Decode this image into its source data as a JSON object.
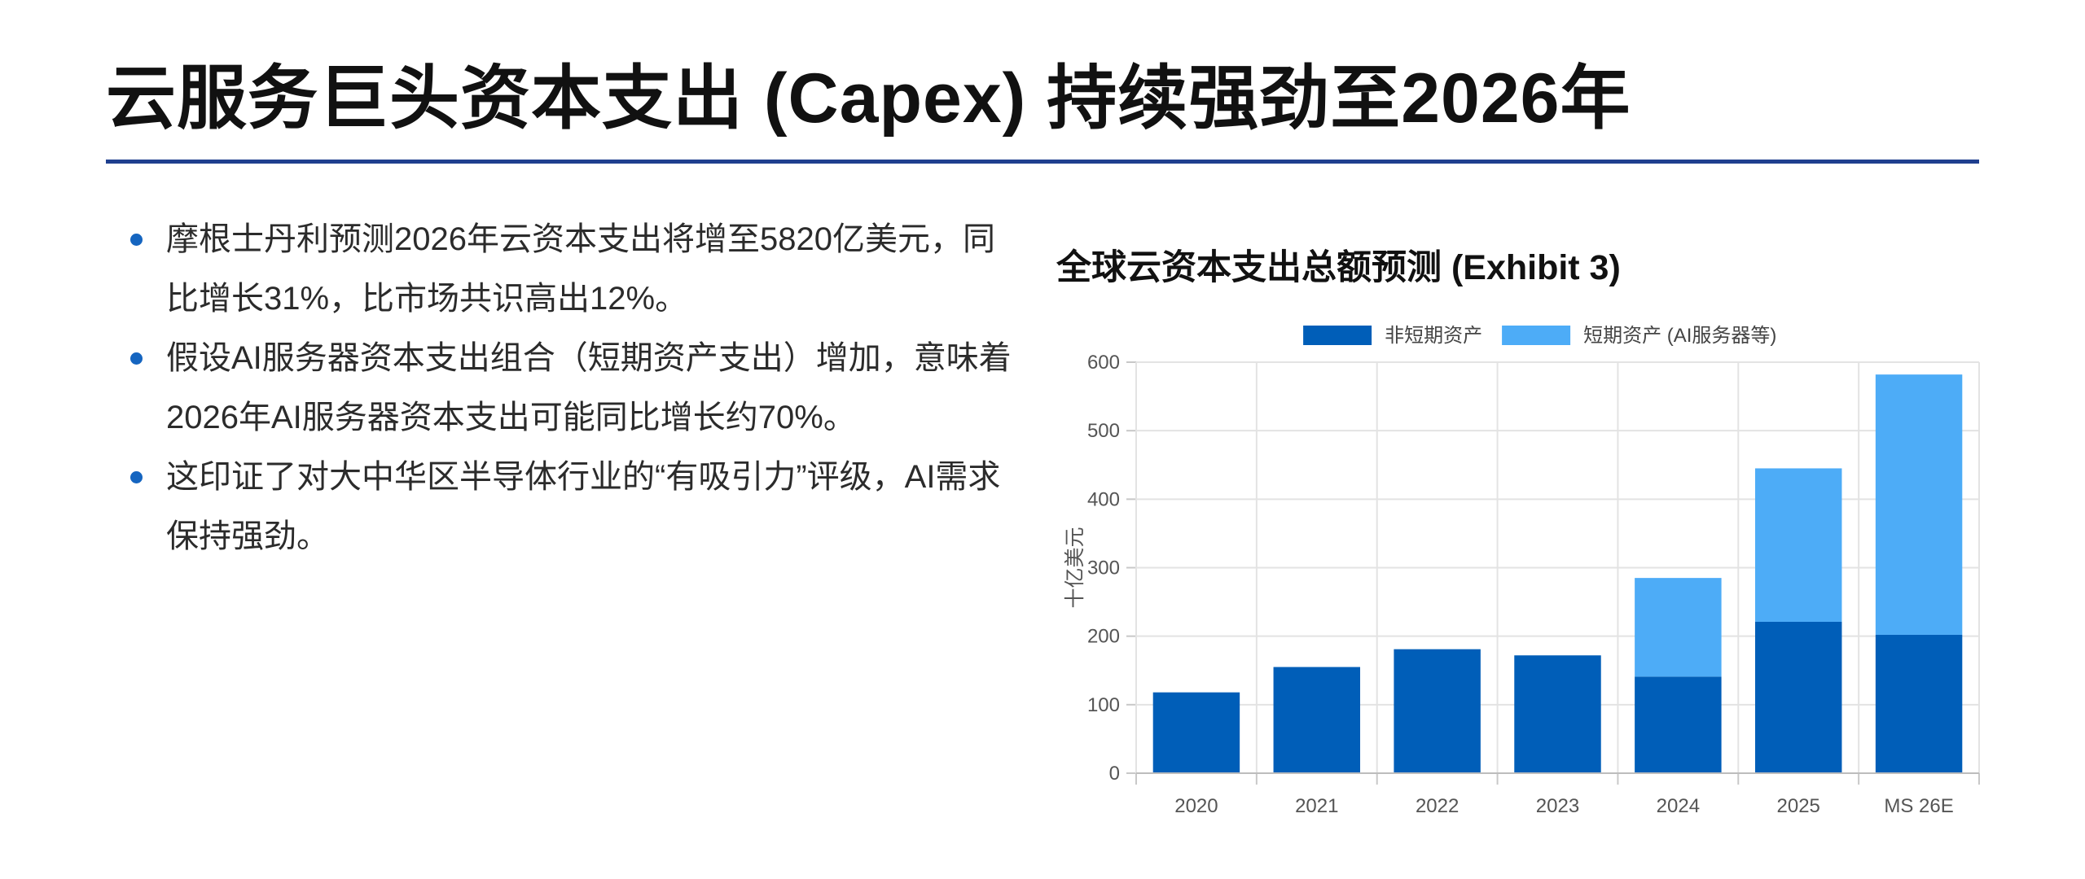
{
  "slide": {
    "title": "云服务巨头资本支出 (Capex) 持续强劲至2026年"
  },
  "bullets": [
    {
      "text": "摩根士丹利预测2026年云资本支出将增至5820亿美元，同比增长31%，比市场共识高出12%。"
    },
    {
      "text": "假设AI服务器资本支出组合（短期资产支出）增加，意味着2026年AI服务器资本支出可能同比增长约70%。"
    },
    {
      "text": "这印证了对大中华区半导体行业的“有吸引力”评级，AI需求保持强劲。"
    }
  ],
  "colors": {
    "rule": "#1f3f8f",
    "bullet_dot": "#1565c0",
    "non_short_term": "#005eb8",
    "short_term": "#4dacf7",
    "grid": "#e3e3e3",
    "tick_text": "#555555"
  },
  "chart_data": {
    "type": "bar",
    "stacked": true,
    "title": "全球云资本支出总额预测 (Exhibit 3)",
    "xlabel": "",
    "ylabel": "十亿美元",
    "categories": [
      "2020",
      "2021",
      "2022",
      "2023",
      "2024",
      "2025",
      "MS 26E"
    ],
    "series": [
      {
        "name": "非短期资产",
        "color": "#005eb8",
        "values": [
          118,
          155,
          181,
          172,
          141,
          221,
          202
        ]
      },
      {
        "name": "短期资产 (AI服务器等)",
        "color": "#4dacf7",
        "values": [
          0,
          0,
          0,
          0,
          144,
          224,
          380
        ]
      }
    ],
    "ylim": [
      0,
      600
    ],
    "yticks": [
      "0",
      "100",
      "200",
      "300",
      "400",
      "500",
      "600"
    ],
    "grid": true,
    "legend_position": "top"
  }
}
